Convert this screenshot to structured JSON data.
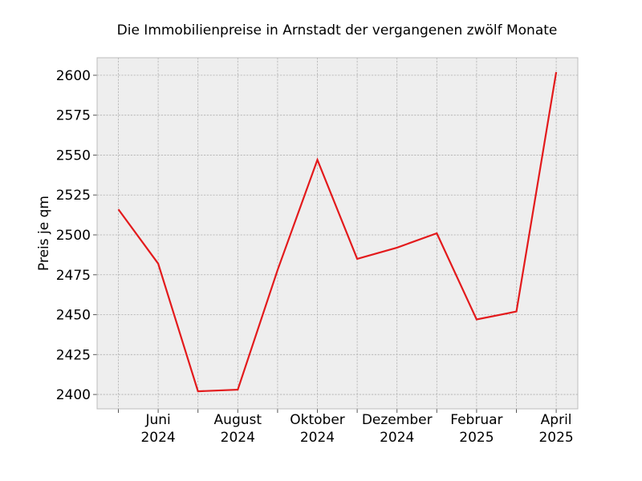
{
  "chart_data": {
    "type": "line",
    "title": "Die Immobilienpreise in Arnstadt der vergangenen zwölf Monate",
    "xlabel": "",
    "ylabel": "Preis je qm",
    "ylim": [
      2391,
      2611
    ],
    "yticks": [
      2400,
      2425,
      2450,
      2475,
      2500,
      2525,
      2550,
      2575,
      2600
    ],
    "x": [
      "2024-05",
      "2024-06",
      "2024-07",
      "2024-08",
      "2024-09",
      "2024-10",
      "2024-11",
      "2024-12",
      "2025-01",
      "2025-02",
      "2025-03",
      "2025-04"
    ],
    "xticks": [
      {
        "x": "2024-06",
        "label_line1": "Juni",
        "label_line2": "2024"
      },
      {
        "x": "2024-08",
        "label_line1": "August",
        "label_line2": "2024"
      },
      {
        "x": "2024-10",
        "label_line1": "Oktober",
        "label_line2": "2024"
      },
      {
        "x": "2024-12",
        "label_line1": "Dezember",
        "label_line2": "2024"
      },
      {
        "x": "2025-02",
        "label_line1": "Februar",
        "label_line2": "2025"
      },
      {
        "x": "2025-04",
        "label_line1": "April",
        "label_line2": "2025"
      }
    ],
    "series": [
      {
        "color": "#e31a1c",
        "values": [
          2516,
          2482,
          2402,
          2403,
          2478,
          2547,
          2485,
          2492,
          2501,
          2447,
          2452,
          2602
        ]
      }
    ],
    "grid": true,
    "background": "#eeeeee"
  }
}
